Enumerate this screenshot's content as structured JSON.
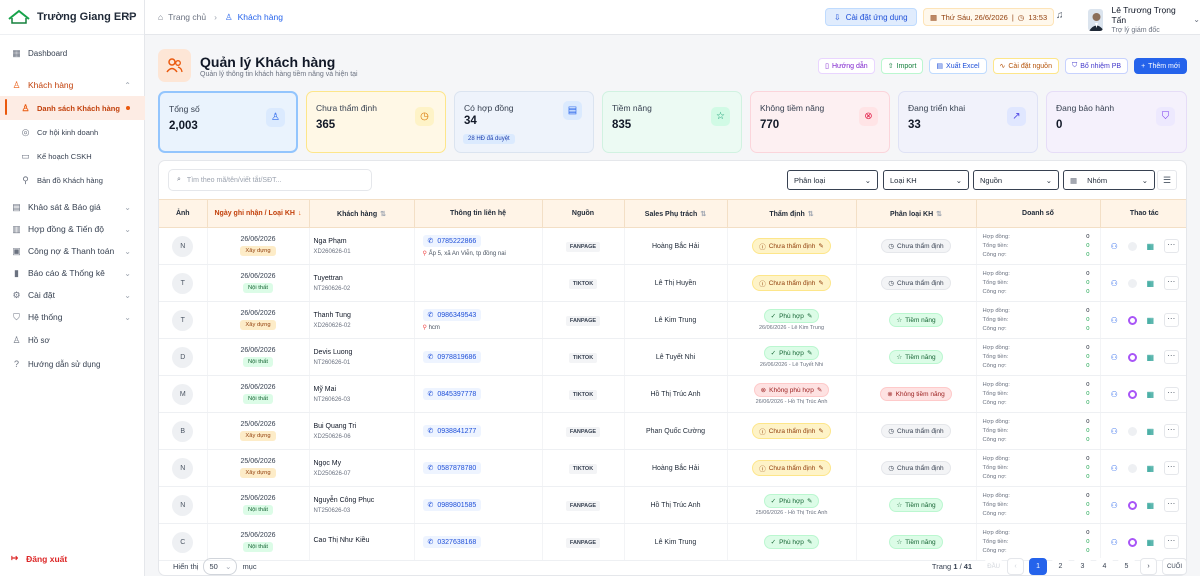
{
  "app": {
    "brand": "Trường Giang ERP"
  },
  "sidebar": {
    "dashboard": "Dashboard",
    "groups": [
      {
        "label": "Khách hàng"
      },
      {
        "label": "Khảo sát & Báo giá"
      },
      {
        "label": "Hợp đồng & Tiến độ"
      },
      {
        "label": "Công nợ & Thanh toán"
      },
      {
        "label": "Báo cáo & Thống kê"
      },
      {
        "label": "Cài đặt"
      },
      {
        "label": "Hệ thống"
      }
    ],
    "sub": [
      "Danh sách Khách hàng",
      "Cơ hội kinh doanh",
      "Kế hoạch CSKH",
      "Bản đồ Khách hàng"
    ],
    "extra": [
      "Hồ sơ",
      "Hướng dẫn sử dụng"
    ],
    "logout": "Đăng xuất"
  },
  "topbar": {
    "home": "Trang chủ",
    "current": "Khách hàng",
    "install": "Cài đặt ứng dụng",
    "date": "Thứ Sáu, 26/6/2026",
    "time": "13:53",
    "user_name": "Lê Trương Trọng Tấn",
    "user_role": "Trợ lý giám đốc"
  },
  "page": {
    "title": "Quản lý Khách hàng",
    "subtitle": "Quản lý thông tin khách hàng tiềm năng và hiện tại",
    "actions": [
      "Hướng dẫn",
      "Import",
      "Xuất Excel",
      "Cài đặt nguồn",
      "Bổ nhiệm PB",
      "Thêm mới"
    ]
  },
  "stats": [
    {
      "label": "Tổng số",
      "value": "2,003"
    },
    {
      "label": "Chưa thẩm định",
      "value": "365"
    },
    {
      "label": "Có hợp đồng",
      "value": "34",
      "pill": "28 HĐ đã duyệt"
    },
    {
      "label": "Tiềm năng",
      "value": "835"
    },
    {
      "label": "Không tiềm năng",
      "value": "770"
    },
    {
      "label": "Đang triển khai",
      "value": "33"
    },
    {
      "label": "Đang bảo hành",
      "value": "0"
    }
  ],
  "filters": {
    "search_placeholder": "Tìm theo mã/tên/viết tắt/SĐT...",
    "phan_loai": "Phân loại",
    "loai_kh": "Loại KH",
    "nguon": "Nguồn",
    "nhom": "Nhóm"
  },
  "columns": [
    "Ảnh",
    "Ngày ghi nhận / Loại KH",
    "Khách hàng",
    "Thông tin liên hệ",
    "Nguồn",
    "Sales Phụ trách",
    "Thẩm định",
    "Phân loại KH",
    "Doanh số",
    "Thao tác"
  ],
  "revenue_labels": [
    "Hợp đồng:",
    "Tổng tiền:",
    "Công nợ:"
  ],
  "rows": [
    {
      "initial": "N",
      "date": "26/06/2026",
      "type": "Xây dựng",
      "name": "Nga Phạm",
      "code": "XD260626-01",
      "phone": "0785222866",
      "address": "Ấp 5, xã An Viễn, tp đồng nai",
      "source": "FANPAGE",
      "sales": "Hoàng Bắc Hải",
      "appraisal": "Chưa thẩm định",
      "appraisal_sub": "",
      "class": "Chưa thẩm định"
    },
    {
      "initial": "T",
      "date": "26/06/2026",
      "type": "Nội thất",
      "name": "Tuyettran",
      "code": "NT260626-02",
      "phone": "",
      "address": "",
      "source": "TIKTOK",
      "sales": "Lê Thị Huyền",
      "appraisal": "Chưa thẩm định",
      "appraisal_sub": "",
      "class": "Chưa thẩm định"
    },
    {
      "initial": "T",
      "date": "26/06/2026",
      "type": "Xây dựng",
      "name": "Thanh Tung",
      "code": "XD260626-02",
      "phone": "0986349543",
      "address": "hcm",
      "source": "FANPAGE",
      "sales": "Lê Kim Trung",
      "appraisal": "Phù hợp",
      "appraisal_sub": "26/06/2026 - Lê Kim Trung",
      "class": "Tiềm năng"
    },
    {
      "initial": "D",
      "date": "26/06/2026",
      "type": "Nội thất",
      "name": "Devis Luong",
      "code": "NT260626-01",
      "phone": "0978819686",
      "address": "",
      "source": "TIKTOK",
      "sales": "Lê Tuyết Nhi",
      "appraisal": "Phù hợp",
      "appraisal_sub": "26/06/2026 - Lê Tuyết Nhi",
      "class": "Tiềm năng"
    },
    {
      "initial": "M",
      "date": "26/06/2026",
      "type": "Nội thất",
      "name": "Mỹ Mai",
      "code": "NT260626-03",
      "phone": "0845397778",
      "address": "",
      "source": "TIKTOK",
      "sales": "Hồ Thị Trúc Anh",
      "appraisal": "Không phù hợp",
      "appraisal_sub": "26/06/2026 - Hồ Thị Trúc Anh",
      "class": "Không tiềm năng"
    },
    {
      "initial": "B",
      "date": "25/06/2026",
      "type": "Xây dựng",
      "name": "Bui Quang Tri",
      "code": "XD250626-06",
      "phone": "0938841277",
      "address": "",
      "source": "FANPAGE",
      "sales": "Phan Quốc Cường",
      "appraisal": "Chưa thẩm định",
      "appraisal_sub": "",
      "class": "Chưa thẩm định"
    },
    {
      "initial": "N",
      "date": "25/06/2026",
      "type": "Xây dựng",
      "name": "Ngọc My",
      "code": "XD250626-07",
      "phone": "0587878780",
      "address": "",
      "source": "TIKTOK",
      "sales": "Hoàng Bắc Hải",
      "appraisal": "Chưa thẩm định",
      "appraisal_sub": "",
      "class": "Chưa thẩm định"
    },
    {
      "initial": "N",
      "date": "25/06/2026",
      "type": "Nội thất",
      "name": "Nguyễn Công Phục",
      "code": "NT250626-03",
      "phone": "0989801585",
      "address": "",
      "source": "FANPAGE",
      "sales": "Hồ Thị Trúc Anh",
      "appraisal": "Phù hợp",
      "appraisal_sub": "25/06/2026 - Hồ Thị Trúc Anh",
      "class": "Tiềm năng"
    },
    {
      "initial": "C",
      "date": "25/06/2026",
      "type": "Nội thất",
      "name": "Cao Thị Như Kiều",
      "code": "",
      "phone": "0327638168",
      "address": "",
      "source": "FANPAGE",
      "sales": "Lê Kim Trung",
      "appraisal": "Phù hợp",
      "appraisal_sub": "",
      "class": "Tiềm năng"
    }
  ],
  "footer": {
    "show": "Hiển thị",
    "page_size": "50",
    "unit": "mục",
    "page_info": "Trang 1 / 41",
    "first": "ĐẦU",
    "last": "CUỐI",
    "pages": [
      "1",
      "2",
      "3",
      "4",
      "5"
    ]
  },
  "colors": {
    "accent": "#2563eb",
    "brand": "#ea580c"
  }
}
